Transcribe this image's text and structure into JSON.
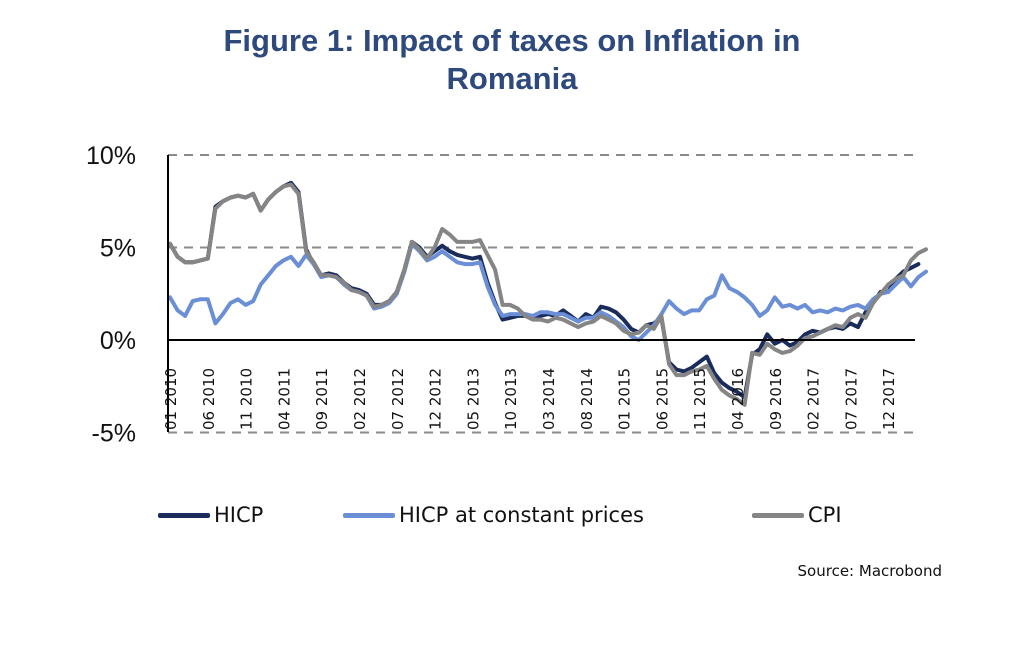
{
  "chart_data": {
    "type": "line",
    "title": "Figure 1: Impact of taxes on Inflation in Romania",
    "title_lines": [
      "Figure 1: Impact of taxes on Inflation in",
      "Romania"
    ],
    "xlabel": "",
    "ylabel": "",
    "ylim": [
      -5,
      10
    ],
    "yticks": [
      10,
      5,
      0,
      -5
    ],
    "ytick_labels": [
      "10%",
      "5%",
      "0%",
      "-5%"
    ],
    "grid": "horizontal dashed",
    "x_start": "01 2010",
    "x_end": "04 2018",
    "frequency": "monthly",
    "xtick_labels": [
      "01 2010",
      "06 2010",
      "11 2010",
      "04 2011",
      "09 2011",
      "02 2012",
      "07 2012",
      "12 2012",
      "05 2013",
      "10 2013",
      "03 2014",
      "08 2014",
      "01 2015",
      "06 2015",
      "11 2015",
      "04 2016",
      "09 2016",
      "02 2017",
      "07 2017",
      "12 2017"
    ],
    "legend_position": "bottom",
    "series": [
      {
        "name": "HICP",
        "color": "#1a2c5c",
        "values": [
          5.2,
          4.5,
          4.2,
          4.2,
          4.3,
          4.4,
          7.2,
          7.5,
          7.7,
          7.8,
          7.7,
          7.9,
          7.0,
          7.6,
          8.0,
          8.3,
          8.5,
          8.0,
          4.9,
          4.1,
          3.5,
          3.6,
          3.5,
          3.1,
          2.8,
          2.7,
          2.5,
          1.9,
          1.9,
          2.1,
          2.6,
          3.8,
          5.3,
          5.0,
          4.5,
          4.8,
          5.1,
          4.8,
          4.6,
          4.5,
          4.4,
          4.5,
          3.1,
          2.0,
          1.1,
          1.2,
          1.3,
          1.3,
          1.3,
          1.3,
          1.4,
          1.3,
          1.6,
          1.3,
          1.0,
          1.4,
          1.2,
          1.8,
          1.7,
          1.5,
          1.1,
          0.6,
          0.4,
          0.8,
          0.9,
          1.2,
          -1.2,
          -1.6,
          -1.7,
          -1.5,
          -1.2,
          -0.9,
          -1.8,
          -2.3,
          -2.6,
          -2.8,
          -3.1,
          -0.8,
          -0.5,
          0.3,
          -0.2,
          0.0,
          -0.3,
          -0.1,
          0.3,
          0.5,
          0.4,
          0.6,
          0.7,
          0.6,
          0.9,
          0.7,
          1.5,
          2.0,
          2.6,
          2.6,
          3.3,
          3.7,
          3.9,
          4.1
        ]
      },
      {
        "name": "HICP at constant prices",
        "color": "#6b8fd6",
        "values": [
          2.3,
          1.6,
          1.3,
          2.1,
          2.2,
          2.2,
          0.9,
          1.4,
          2.0,
          2.2,
          1.9,
          2.1,
          3.0,
          3.5,
          4.0,
          4.3,
          4.5,
          4.0,
          4.6,
          4.1,
          3.4,
          3.5,
          3.4,
          3.0,
          2.7,
          2.6,
          2.4,
          1.7,
          1.8,
          2.0,
          2.5,
          3.7,
          5.2,
          4.8,
          4.3,
          4.5,
          4.8,
          4.5,
          4.2,
          4.1,
          4.1,
          4.2,
          2.9,
          1.9,
          1.3,
          1.4,
          1.4,
          1.4,
          1.3,
          1.5,
          1.5,
          1.4,
          1.4,
          1.2,
          1.0,
          1.2,
          1.2,
          1.5,
          1.3,
          1.0,
          0.7,
          0.2,
          0.0,
          0.4,
          0.8,
          1.4,
          2.1,
          1.7,
          1.4,
          1.6,
          1.6,
          2.2,
          2.4,
          3.5,
          2.8,
          2.6,
          2.3,
          1.9,
          1.3,
          1.6,
          2.3,
          1.8,
          1.9,
          1.7,
          1.9,
          1.5,
          1.6,
          1.5,
          1.7,
          1.6,
          1.8,
          1.9,
          1.7,
          2.2,
          2.5,
          2.6,
          3.0,
          3.4,
          2.9,
          3.4,
          3.7
        ]
      },
      {
        "name": "CPI",
        "color": "#858585",
        "values": [
          5.2,
          4.5,
          4.2,
          4.2,
          4.3,
          4.4,
          7.1,
          7.5,
          7.7,
          7.8,
          7.7,
          7.9,
          7.0,
          7.6,
          8.0,
          8.3,
          8.4,
          7.9,
          4.8,
          4.2,
          3.5,
          3.5,
          3.4,
          3.1,
          2.7,
          2.6,
          2.4,
          1.8,
          1.9,
          2.1,
          2.6,
          3.8,
          5.3,
          4.9,
          4.4,
          5.0,
          6.0,
          5.7,
          5.3,
          5.3,
          5.3,
          5.4,
          4.6,
          3.8,
          1.9,
          1.9,
          1.7,
          1.3,
          1.1,
          1.1,
          1.0,
          1.2,
          1.1,
          0.9,
          0.7,
          0.9,
          1.0,
          1.3,
          1.1,
          0.9,
          0.5,
          0.3,
          0.4,
          0.8,
          0.6,
          1.3,
          -1.3,
          -1.9,
          -1.9,
          -1.7,
          -1.6,
          -1.4,
          -2.1,
          -2.7,
          -3.0,
          -3.2,
          -3.5,
          -0.7,
          -0.8,
          -0.2,
          -0.5,
          -0.7,
          -0.6,
          -0.3,
          0.1,
          0.2,
          0.4,
          0.6,
          0.8,
          0.7,
          1.2,
          1.4,
          1.2,
          2.0,
          2.5,
          3.0,
          3.3,
          3.5,
          4.3,
          4.7,
          4.9
        ]
      }
    ]
  },
  "legend": {
    "items": [
      {
        "label": "HICP",
        "color": "#1a2c5c"
      },
      {
        "label": "HICP at constant prices",
        "color": "#6b8fd6"
      },
      {
        "label": "CPI",
        "color": "#858585"
      }
    ]
  },
  "source": "Source: Macrobond"
}
